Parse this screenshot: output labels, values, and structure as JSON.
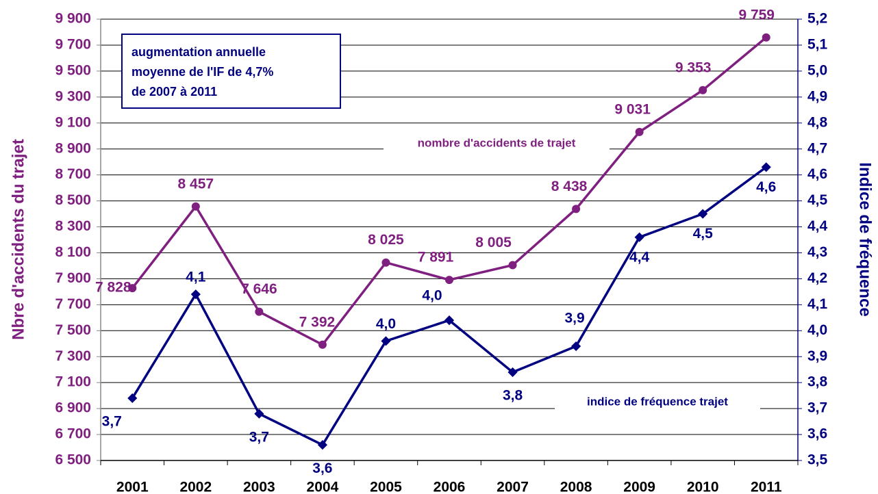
{
  "chart_data": {
    "type": "line",
    "categories": [
      "2001",
      "2002",
      "2003",
      "2004",
      "2005",
      "2006",
      "2007",
      "2008",
      "2009",
      "2010",
      "2011"
    ],
    "series": [
      {
        "name": "nombre d'accidents de trajet",
        "color": "#7f1f7f",
        "axis": "y",
        "values": [
          7828,
          8457,
          7646,
          7392,
          8025,
          7891,
          8005,
          8438,
          9031,
          9353,
          9759
        ],
        "value_labels": [
          "7 828",
          "8 457",
          "7 646",
          "7 392",
          "8 025",
          "7 891",
          "8 005",
          "8 438",
          "9 031",
          "9 353",
          "9 759"
        ]
      },
      {
        "name": "indice de fréquence trajet",
        "color": "#000080",
        "axis": "y2",
        "values": [
          3.74,
          4.14,
          3.68,
          3.56,
          3.96,
          4.04,
          3.84,
          3.94,
          4.36,
          4.45,
          4.63
        ],
        "value_labels": [
          "3,7",
          "4,1",
          "3,7",
          "3,6",
          "4,0",
          "4,0",
          "3,8",
          "3,9",
          "4,4",
          "4,5",
          "4,6"
        ]
      }
    ],
    "ylabel": "Nbre d'accidents du trajet",
    "y2label": "Indice de fréquence",
    "annotation": [
      "augmentation annuelle",
      "moyenne de l'IF de 4,7%",
      "de 2007 à 2011"
    ],
    "ylim": [
      6500,
      9900
    ],
    "yticks": [
      {
        "value": 6500,
        "label": "6 500"
      },
      {
        "value": 6700,
        "label": "6 700"
      },
      {
        "value": 6900,
        "label": "6 900"
      },
      {
        "value": 7100,
        "label": "7 100"
      },
      {
        "value": 7300,
        "label": "7 300"
      },
      {
        "value": 7500,
        "label": "7 500"
      },
      {
        "value": 7700,
        "label": "7 700"
      },
      {
        "value": 7900,
        "label": "7 900"
      },
      {
        "value": 8100,
        "label": "8 100"
      },
      {
        "value": 8300,
        "label": "8 300"
      },
      {
        "value": 8500,
        "label": "8 500"
      },
      {
        "value": 8700,
        "label": "8 700"
      },
      {
        "value": 8900,
        "label": "8 900"
      },
      {
        "value": 9100,
        "label": "9 100"
      },
      {
        "value": 9300,
        "label": "9 300"
      },
      {
        "value": 9500,
        "label": "9 500"
      },
      {
        "value": 9700,
        "label": "9 700"
      },
      {
        "value": 9900,
        "label": "9 900"
      }
    ],
    "y2lim": [
      3.5,
      5.2
    ],
    "y2ticks": [
      {
        "value": 3.5,
        "label": "3,5"
      },
      {
        "value": 3.6,
        "label": "3,6"
      },
      {
        "value": 3.7,
        "label": "3,7"
      },
      {
        "value": 3.8,
        "label": "3,8"
      },
      {
        "value": 3.9,
        "label": "3,9"
      },
      {
        "value": 4.0,
        "label": "4,0"
      },
      {
        "value": 4.1,
        "label": "4,1"
      },
      {
        "value": 4.2,
        "label": "4,2"
      },
      {
        "value": 4.3,
        "label": "4,3"
      },
      {
        "value": 4.4,
        "label": "4,4"
      },
      {
        "value": 4.5,
        "label": "4,5"
      },
      {
        "value": 4.6,
        "label": "4,6"
      },
      {
        "value": 4.7,
        "label": "4,7"
      },
      {
        "value": 4.8,
        "label": "4,8"
      },
      {
        "value": 4.9,
        "label": "4,9"
      },
      {
        "value": 5.0,
        "label": "5,0"
      },
      {
        "value": 5.1,
        "label": "5,1"
      },
      {
        "value": 5.2,
        "label": "5,2"
      }
    ],
    "grid": true
  }
}
